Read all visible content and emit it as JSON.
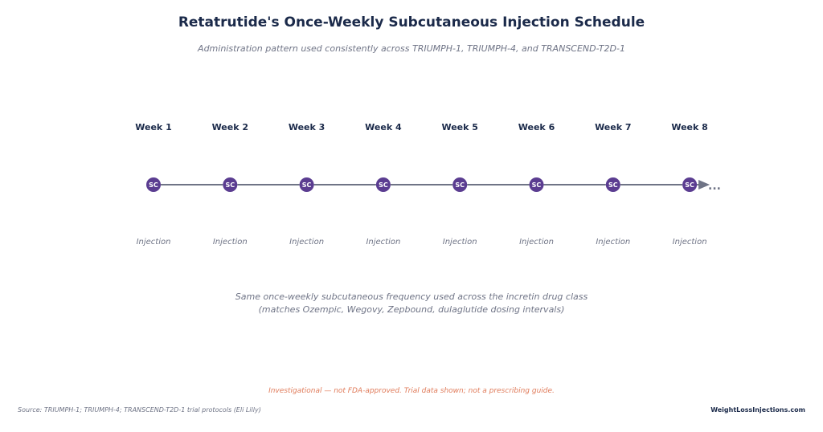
{
  "header": {
    "title": "Retatrutide's Once-Weekly Subcutaneous Injection Schedule",
    "subtitle": "Administration pattern used consistently across TRIUMPH-1, TRIUMPH-4, and TRANSCEND-T2D-1"
  },
  "timeline": {
    "weeks": [
      {
        "label": "Week 1",
        "marker": "SC",
        "caption": "Injection"
      },
      {
        "label": "Week 2",
        "marker": "SC",
        "caption": "Injection"
      },
      {
        "label": "Week 3",
        "marker": "SC",
        "caption": "Injection"
      },
      {
        "label": "Week 4",
        "marker": "SC",
        "caption": "Injection"
      },
      {
        "label": "Week 5",
        "marker": "SC",
        "caption": "Injection"
      },
      {
        "label": "Week 6",
        "marker": "SC",
        "caption": "Injection"
      },
      {
        "label": "Week 7",
        "marker": "SC",
        "caption": "Injection"
      },
      {
        "label": "Week 8",
        "marker": "SC",
        "caption": "Injection"
      }
    ],
    "continuation": "...",
    "colors": {
      "marker": "#5b3d91",
      "line": "#6f7486"
    }
  },
  "note": {
    "line1": "Same once-weekly subcutaneous frequency used across the incretin drug class",
    "line2": "(matches Ozempic, Wegovy, Zepbound, dulaglutide dosing intervals)"
  },
  "footer": {
    "disclaimer": "Investigational — not FDA-approved. Trial data shown; not a prescribing guide.",
    "source": "Source: TRIUMPH-1; TRIUMPH-4; TRANSCEND-T2D-1 trial protocols (Eli Lilly)",
    "brand": "WeightLossInjections.com"
  }
}
